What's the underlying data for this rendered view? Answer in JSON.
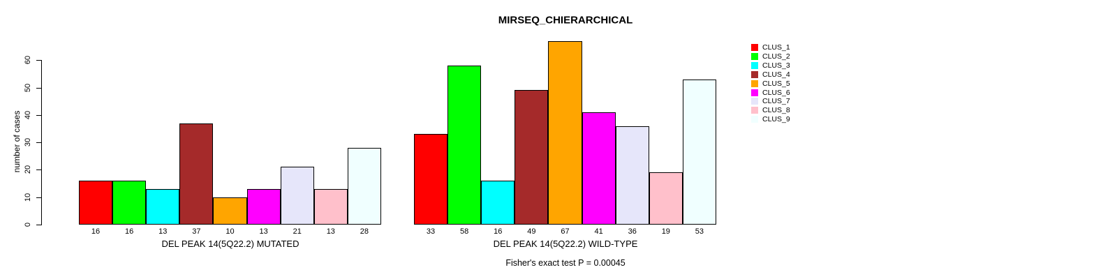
{
  "title": "MIRSEQ_CHIERARCHICAL",
  "footer": "Fisher's exact test P = 0.00045",
  "chart_data": {
    "type": "bar",
    "title": "MIRSEQ_CHIERARCHICAL",
    "ylabel": "number of cases",
    "xlabel": "",
    "ylim": [
      0,
      67
    ],
    "yticks": [
      0,
      10,
      20,
      30,
      40,
      50,
      60
    ],
    "grid": false,
    "legend_position": "right-outside",
    "annotation": "Fisher's exact test P = 0.00045",
    "clusters": [
      "CLUS_1",
      "CLUS_2",
      "CLUS_3",
      "CLUS_4",
      "CLUS_5",
      "CLUS_6",
      "CLUS_7",
      "CLUS_8",
      "CLUS_9"
    ],
    "colors": [
      "#FF0000",
      "#00FF00",
      "#00FFFF",
      "#A52A2A",
      "#FFA500",
      "#FF00FF",
      "#E6E6FA",
      "#FFC0CB",
      "#F0FFFF"
    ],
    "groups": [
      {
        "label": "DEL PEAK 14(5Q22.2) MUTATED",
        "values": [
          16,
          16,
          13,
          37,
          10,
          13,
          21,
          13,
          28
        ]
      },
      {
        "label": "DEL PEAK 14(5Q22.2) WILD-TYPE",
        "values": [
          33,
          58,
          16,
          49,
          67,
          41,
          36,
          19,
          53
        ]
      }
    ],
    "legend": [
      {
        "label": "CLUS_1",
        "color": "#FF0000"
      },
      {
        "label": "CLUS_2",
        "color": "#00FF00"
      },
      {
        "label": "CLUS_3",
        "color": "#00FFFF"
      },
      {
        "label": "CLUS_4",
        "color": "#A52A2A"
      },
      {
        "label": "CLUS_5",
        "color": "#FFA500"
      },
      {
        "label": "CLUS_6",
        "color": "#FF00FF"
      },
      {
        "label": "CLUS_7",
        "color": "#E6E6FA"
      },
      {
        "label": "CLUS_8",
        "color": "#FFC0CB"
      },
      {
        "label": "CLUS_9",
        "color": "#F0FFFF"
      }
    ],
    "colors_meta": {
      "background": "#ffffff",
      "bar_border": "#000000",
      "text": "#000000"
    }
  }
}
